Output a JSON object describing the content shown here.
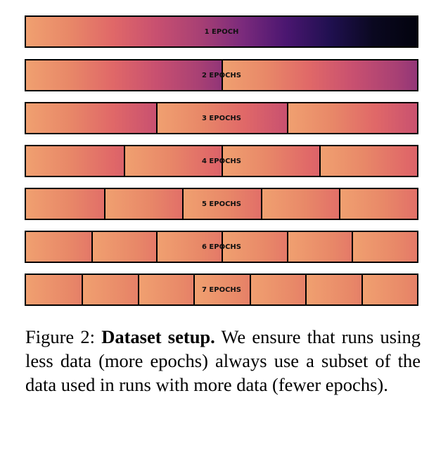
{
  "colormap": [
    "#f0a070",
    "#e88868",
    "#e06868",
    "#c85070",
    "#a84074",
    "#7a2a7c",
    "#4a1670",
    "#201050",
    "#0a0820",
    "#03030e"
  ],
  "bars": [
    {
      "epochs": 1,
      "label": "1 EPOCH"
    },
    {
      "epochs": 2,
      "label": "2 EPOCHS"
    },
    {
      "epochs": 3,
      "label": "3 EPOCHS"
    },
    {
      "epochs": 4,
      "label": "4 EPOCHS"
    },
    {
      "epochs": 5,
      "label": "5 EPOCHS"
    },
    {
      "epochs": 6,
      "label": "6 EPOCHS"
    },
    {
      "epochs": 7,
      "label": "7 EPOCHS"
    }
  ],
  "caption": {
    "prefix": "Figure 2: ",
    "bold": "Dataset setup.",
    "text": " We ensure that runs using less data (more epochs) always use a subset of the data used in runs with more data (fewer epochs)."
  }
}
